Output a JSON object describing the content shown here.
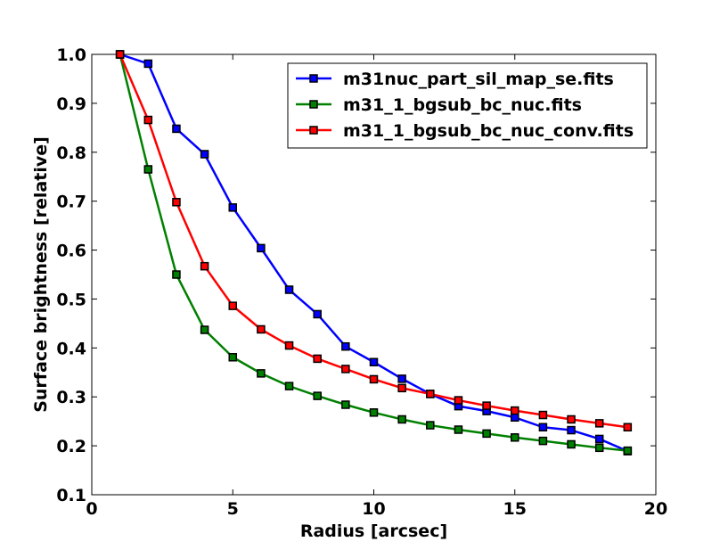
{
  "chart_data": {
    "type": "line",
    "title": "",
    "xlabel": "Radius [arcsec]",
    "ylabel": "Surface brightness [relative]",
    "xlim": [
      0,
      20
    ],
    "ylim": [
      0.1,
      1.0
    ],
    "xticks": [
      0,
      5,
      10,
      15,
      20
    ],
    "yticks": [
      0.1,
      0.2,
      0.3,
      0.4,
      0.5,
      0.6,
      0.7,
      0.8,
      0.9,
      1.0
    ],
    "xtick_labels": [
      "0",
      "5",
      "10",
      "15",
      "20"
    ],
    "ytick_labels": [
      "0.1",
      "0.2",
      "0.3",
      "0.4",
      "0.5",
      "0.6",
      "0.7",
      "0.8",
      "0.9",
      "1.0"
    ],
    "grid": false,
    "legend_position": "top-right",
    "x": [
      1,
      2,
      3,
      4,
      5,
      6,
      7,
      8,
      9,
      10,
      11,
      12,
      13,
      14,
      15,
      16,
      17,
      18,
      19
    ],
    "series": [
      {
        "name": "m31nuc_part_sil_map_se.fits",
        "color": "#0000ff",
        "values": [
          1.0,
          0.981,
          0.848,
          0.796,
          0.687,
          0.604,
          0.519,
          0.469,
          0.403,
          0.371,
          0.337,
          0.306,
          0.281,
          0.271,
          0.258,
          0.238,
          0.232,
          0.214,
          0.189
        ]
      },
      {
        "name": "m31_1_bgsub_bc_nuc.fits",
        "color": "#008000",
        "values": [
          1.0,
          0.765,
          0.55,
          0.437,
          0.381,
          0.348,
          0.322,
          0.302,
          0.284,
          0.268,
          0.254,
          0.242,
          0.233,
          0.225,
          0.217,
          0.21,
          0.203,
          0.196,
          0.19
        ]
      },
      {
        "name": "m31_1_bgsub_bc_nuc_conv.fits",
        "color": "#ff0000",
        "values": [
          1.0,
          0.866,
          0.698,
          0.567,
          0.486,
          0.438,
          0.405,
          0.378,
          0.357,
          0.336,
          0.318,
          0.306,
          0.293,
          0.282,
          0.272,
          0.263,
          0.254,
          0.246,
          0.238
        ]
      }
    ]
  }
}
